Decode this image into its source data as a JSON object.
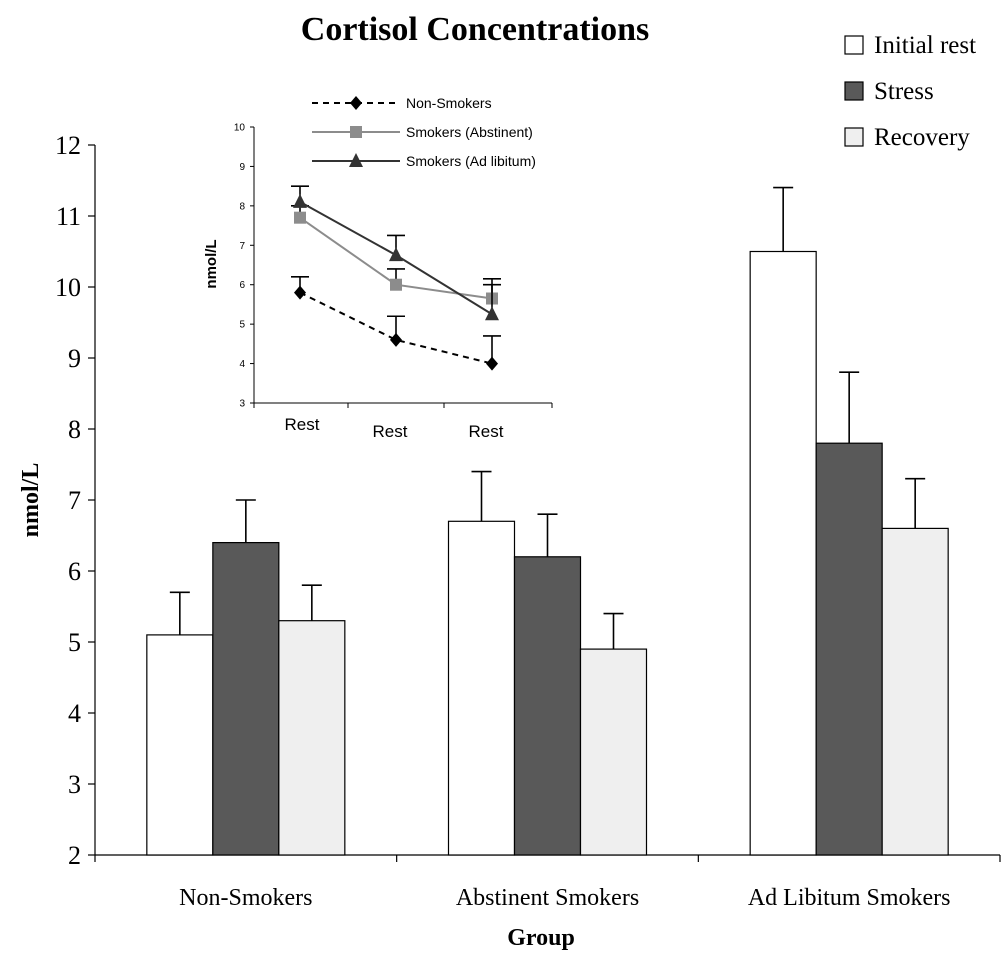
{
  "chart_data": [
    {
      "type": "bar",
      "title": "Cortisol Concentrations",
      "xlabel": "Group",
      "ylabel": "nmol/L",
      "ylim": [
        2,
        12
      ],
      "yticks": [
        2,
        3,
        4,
        5,
        6,
        7,
        8,
        9,
        10,
        11,
        12
      ],
      "categories": [
        "Non-Smokers",
        "Abstinent Smokers",
        "Ad Libitum Smokers"
      ],
      "series": [
        {
          "name": "Initial rest",
          "values": [
            5.1,
            6.7,
            10.5
          ],
          "error": [
            0.6,
            0.7,
            0.9
          ],
          "color": "#ffffff"
        },
        {
          "name": "Stress",
          "values": [
            6.4,
            6.2,
            7.8
          ],
          "error": [
            0.6,
            0.6,
            1.0
          ],
          "color": "#595959"
        },
        {
          "name": "Recovery",
          "values": [
            5.3,
            4.9,
            6.6
          ],
          "error": [
            0.5,
            0.5,
            0.7
          ],
          "color": "#efefef"
        }
      ],
      "legend_position": "top-right",
      "grid": false
    },
    {
      "type": "line",
      "ylabel": "nmol/L",
      "ylim": [
        3,
        10
      ],
      "yticks": [
        3,
        4,
        5,
        6,
        7,
        8,
        9,
        10
      ],
      "categories": [
        "Rest",
        "Rest",
        "Rest"
      ],
      "series": [
        {
          "name": "Non-Smokers",
          "values": [
            5.8,
            4.6,
            4.0
          ],
          "error": [
            0.4,
            0.6,
            0.7
          ],
          "marker": "diamond",
          "dash": true,
          "color": "#000000"
        },
        {
          "name": "Smokers (Abstinent)",
          "values": [
            7.7,
            6.0,
            5.65
          ],
          "error": [
            0.3,
            0.4,
            0.35
          ],
          "marker": "square",
          "dash": false,
          "color": "#8c8c8c"
        },
        {
          "name": "Smokers (Ad libitum)",
          "values": [
            8.1,
            6.75,
            5.25
          ],
          "error": [
            0.4,
            0.5,
            0.9
          ],
          "marker": "triangle",
          "dash": false,
          "color": "#333333"
        }
      ],
      "legend_position": "top",
      "grid": false
    }
  ]
}
